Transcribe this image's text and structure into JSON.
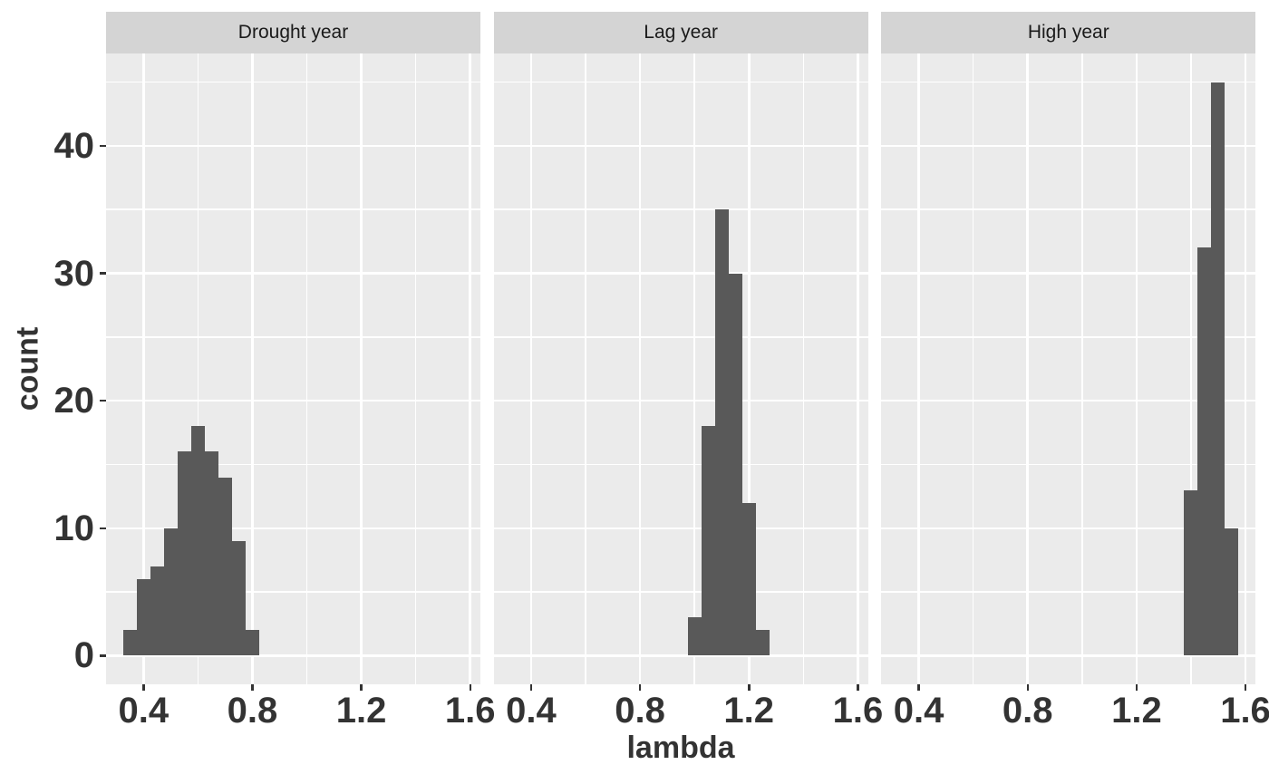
{
  "colors": {
    "background": "#FFFFFF",
    "panel_bg": "#EBEBEB",
    "strip_bg": "#D4D4D4",
    "strip_text": "#1A1A1A",
    "bar_fill": "#595959",
    "gridline": "#FFFFFF",
    "axis_text": "#333333"
  },
  "chart_data": {
    "type": "bar",
    "subtype": "faceted-histogram",
    "title": "",
    "xlabel": "lambda",
    "ylabel": "count",
    "legend": "none",
    "grid": "white major and minor gridlines on grey panel",
    "binwidth": 0.05,
    "x_domain": [
      0.2625,
      1.6375
    ],
    "y_domain": [
      -2.25,
      47.25
    ],
    "x_tick_values": [
      0.4,
      0.8,
      1.2,
      1.6
    ],
    "x_tick_labels": [
      "0.4",
      "0.8",
      "1.2",
      "1.6"
    ],
    "x_minor_gridlines": [
      0.6,
      1.0,
      1.4
    ],
    "y_tick_values": [
      0,
      10,
      20,
      30,
      40
    ],
    "y_tick_labels": [
      "0",
      "10",
      "20",
      "30",
      "40"
    ],
    "y_minor_gridlines": [
      5,
      15,
      25,
      35,
      45
    ],
    "facets": [
      {
        "label": "Drought year",
        "bin_centers": [
          0.35,
          0.4,
          0.45,
          0.5,
          0.55,
          0.6,
          0.65,
          0.7,
          0.75,
          0.8
        ],
        "counts": [
          2,
          6,
          7,
          10,
          16,
          18,
          16,
          14,
          9,
          2
        ]
      },
      {
        "label": "Lag year",
        "bin_centers": [
          1.0,
          1.05,
          1.1,
          1.15,
          1.2,
          1.25
        ],
        "counts": [
          3,
          18,
          35,
          30,
          12,
          2
        ]
      },
      {
        "label": "High year",
        "bin_centers": [
          1.4,
          1.45,
          1.5,
          1.55
        ],
        "counts": [
          13,
          32,
          45,
          10
        ]
      }
    ]
  }
}
